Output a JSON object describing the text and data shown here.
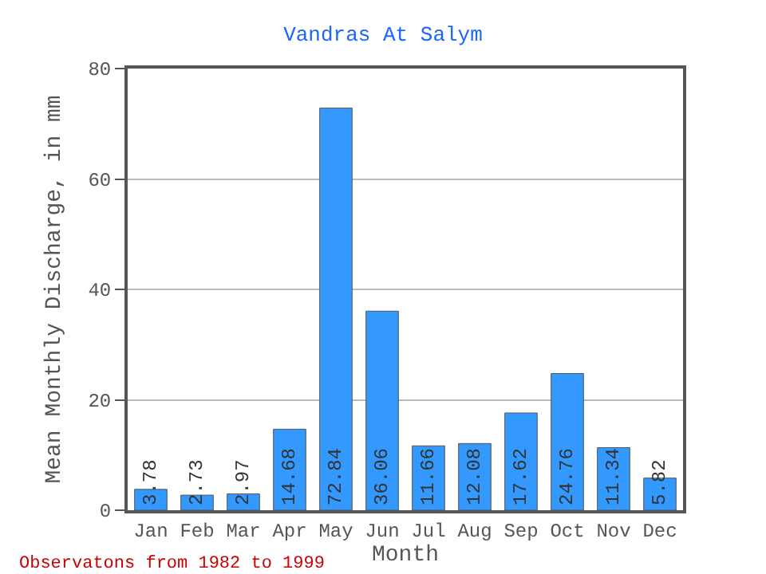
{
  "chart_data": {
    "type": "bar",
    "title": "Vandras At Salym",
    "xlabel": "Month",
    "ylabel": "Mean Monthly Discharge, in mm",
    "categories": [
      "Jan",
      "Feb",
      "Mar",
      "Apr",
      "May",
      "Jun",
      "Jul",
      "Aug",
      "Sep",
      "Oct",
      "Nov",
      "Dec"
    ],
    "values": [
      3.78,
      2.73,
      2.97,
      14.68,
      72.84,
      36.06,
      11.66,
      12.08,
      17.62,
      24.76,
      11.34,
      5.82
    ],
    "color": "#3399ff",
    "ylim": [
      0,
      80
    ],
    "yticks": [
      0,
      20,
      40,
      60,
      80
    ],
    "grid": "y",
    "data_labels": true,
    "annotations": [
      "Observatons from 1982 to 1999"
    ]
  }
}
